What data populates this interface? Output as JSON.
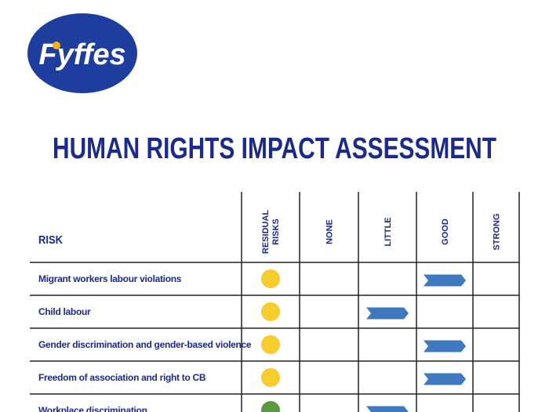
{
  "logo": {
    "text": "Fyffes"
  },
  "header": {
    "title": "HUMAN RIGHTS IMPACT ASSESSMENT"
  },
  "table": {
    "columns": [
      "RISK",
      "RESIDUAL RISKS",
      "NONE",
      "LITTLE",
      "GOOD",
      "STRONG"
    ],
    "rows": [
      {
        "risk": "Migrant workers labour violations",
        "residual_color": "#f7cc2e",
        "level": "GOOD"
      },
      {
        "risk": "Child labour",
        "residual_color": "#f7cc2e",
        "level": "LITTLE"
      },
      {
        "risk": "Gender discrimination and gender-based violence",
        "residual_color": "#f7cc2e",
        "level": "GOOD"
      },
      {
        "risk": "Freedom of association and right to CB",
        "residual_color": "#f7cc2e",
        "level": "GOOD"
      },
      {
        "risk": "Workplace discrimination",
        "residual_color": "#5a9a3c",
        "level": "LITTLE"
      }
    ]
  }
}
